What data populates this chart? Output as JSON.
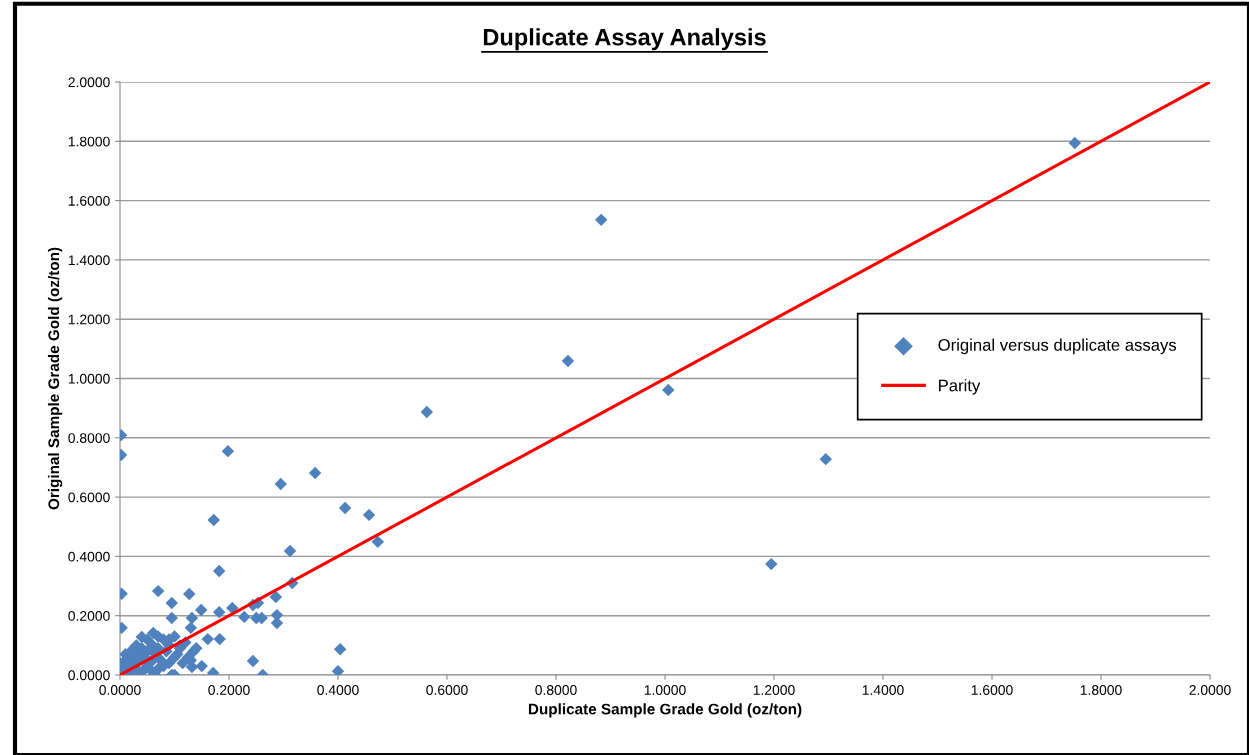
{
  "chart_data": {
    "type": "scatter",
    "title": "Duplicate Assay Analysis",
    "xlabel": "Duplicate Sample Grade Gold (oz/ton)",
    "ylabel": "Original Sample Grade Gold (oz/ton)",
    "xlim": [
      0,
      2
    ],
    "ylim": [
      0,
      2
    ],
    "xticks": [
      {
        "value": 0,
        "label": "0.0000"
      },
      {
        "value": 0.2,
        "label": "0.2000"
      },
      {
        "value": 0.4,
        "label": "0.4000"
      },
      {
        "value": 0.6,
        "label": "0.6000"
      },
      {
        "value": 0.8,
        "label": "0.8000"
      },
      {
        "value": 1.0,
        "label": "1.0000"
      },
      {
        "value": 1.2,
        "label": "1.2000"
      },
      {
        "value": 1.4,
        "label": "1.4000"
      },
      {
        "value": 1.6,
        "label": "1.6000"
      },
      {
        "value": 1.8,
        "label": "1.8000"
      },
      {
        "value": 2.0,
        "label": "2.0000"
      }
    ],
    "yticks": [
      {
        "value": 0,
        "label": "0.0000"
      },
      {
        "value": 0.2,
        "label": "0.2000"
      },
      {
        "value": 0.4,
        "label": "0.4000"
      },
      {
        "value": 0.6,
        "label": "0.6000"
      },
      {
        "value": 0.8,
        "label": "0.8000"
      },
      {
        "value": 1.0,
        "label": "1.0000"
      },
      {
        "value": 1.2,
        "label": "1.2000"
      },
      {
        "value": 1.4,
        "label": "1.4000"
      },
      {
        "value": 1.6,
        "label": "1.6000"
      },
      {
        "value": 1.8,
        "label": "1.8000"
      },
      {
        "value": 2.0,
        "label": "2.0000"
      }
    ],
    "grid": "y",
    "legend": "right",
    "series": [
      {
        "name": "Original versus duplicate assays",
        "marker": "diamond",
        "color": "#4f81bd",
        "x": [
          1.752,
          0.883,
          0.822,
          1.006,
          1.295,
          1.195,
          0.563,
          0.002,
          0.002,
          0.198,
          0.358,
          0.295,
          0.172,
          0.413,
          0.457,
          0.473,
          0.312,
          0.182,
          0.003,
          0.07,
          0.127,
          0.095,
          0.003,
          0.095,
          0.132,
          0.149,
          0.13,
          0.182,
          0.206,
          0.228,
          0.244,
          0.253,
          0.286,
          0.316,
          0.25,
          0.26,
          0.288,
          0.288,
          0.161,
          0.183,
          0.244,
          0.262,
          0.171,
          0.132,
          0.095,
          0.064,
          0.04,
          0.061,
          0.404,
          0.4,
          0.14,
          0.12,
          0.105,
          0.09,
          0.08,
          0.07,
          0.06,
          0.05,
          0.04,
          0.03,
          0.02,
          0.01,
          0.005,
          0.015,
          0.025,
          0.035,
          0.045,
          0.065,
          0.075,
          0.085,
          0.1,
          0.11,
          0.125,
          0.135,
          0.02,
          0.03,
          0.05,
          0.07,
          0.09,
          0.01,
          0.04,
          0.06,
          0.08,
          0.1,
          0.115,
          0.0,
          0.01,
          0.02,
          0.03,
          0.05,
          0.07,
          0.09,
          0.11,
          0.13,
          0.15,
          0.06,
          0.1
        ],
        "values": [
          1.794,
          1.535,
          1.059,
          0.961,
          0.728,
          0.374,
          0.887,
          0.809,
          0.742,
          0.755,
          0.681,
          0.644,
          0.523,
          0.563,
          0.54,
          0.449,
          0.418,
          0.351,
          0.274,
          0.283,
          0.273,
          0.243,
          0.159,
          0.192,
          0.192,
          0.219,
          0.159,
          0.212,
          0.226,
          0.196,
          0.236,
          0.243,
          0.263,
          0.31,
          0.192,
          0.192,
          0.202,
          0.175,
          0.121,
          0.121,
          0.047,
          0.0,
          0.007,
          0.027,
          0.0,
          0.0,
          0.128,
          0.142,
          0.087,
          0.013,
          0.09,
          0.11,
          0.07,
          0.1,
          0.12,
          0.09,
          0.1,
          0.08,
          0.09,
          0.07,
          0.06,
          0.05,
          0.02,
          0.04,
          0.03,
          0.05,
          0.06,
          0.07,
          0.05,
          0.08,
          0.06,
          0.09,
          0.06,
          0.08,
          0.01,
          0.02,
          0.03,
          0.02,
          0.04,
          0.0,
          0.01,
          0.05,
          0.03,
          0.0,
          0.04,
          0.04,
          0.07,
          0.08,
          0.1,
          0.12,
          0.13,
          0.12,
          0.1,
          0.05,
          0.03,
          0.01,
          0.13
        ]
      },
      {
        "name": "Parity",
        "type": "line",
        "marker": "none",
        "line_style": "solid",
        "color": "#ff0000",
        "x": [
          0,
          2
        ],
        "values": [
          0,
          2
        ]
      }
    ]
  }
}
